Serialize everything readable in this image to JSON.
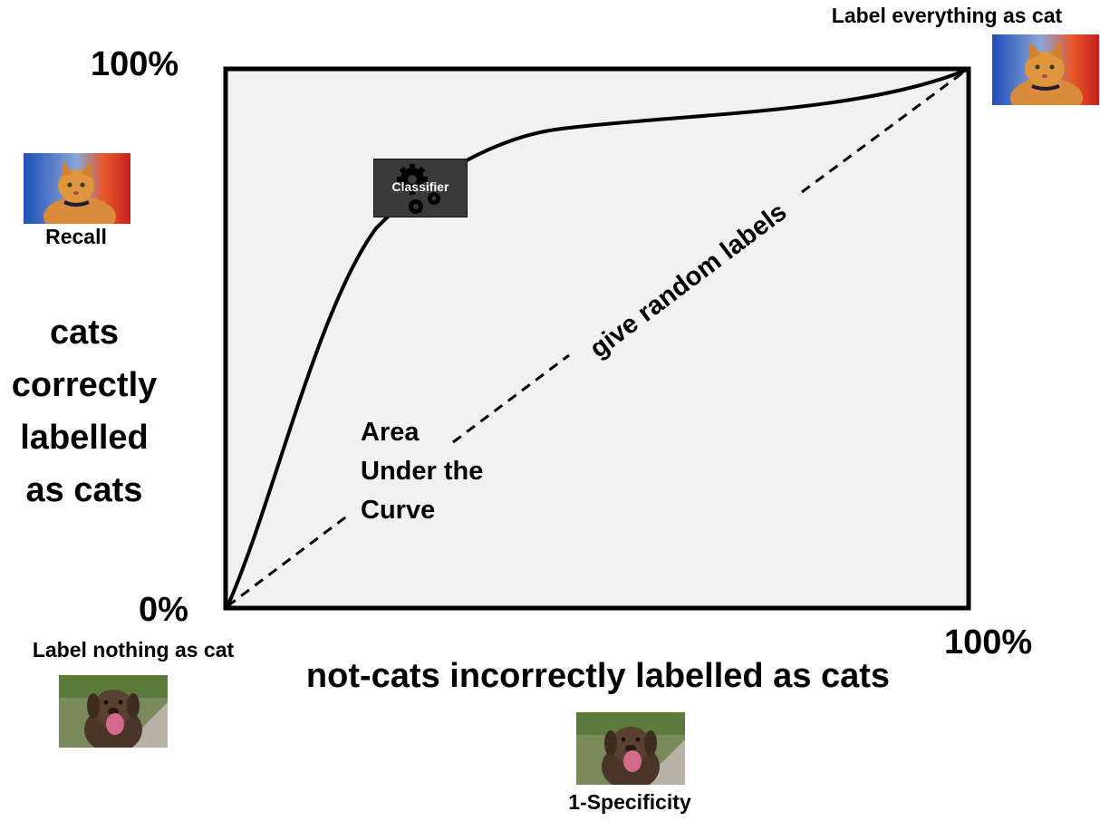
{
  "axes": {
    "y_top": "100%",
    "origin": "0%",
    "x_right": "100%",
    "y_label": "cats correctly labelled as cats",
    "x_label": "not-cats incorrectly labelled as cats"
  },
  "annotations": {
    "recall": "Recall",
    "specificity": "1-Specificity",
    "label_all_cat": "Label everything as cat",
    "label_none_cat": "Label nothing as cat",
    "auc_line1": "Area",
    "auc_line2": "Under the",
    "auc_line3": "Curve",
    "random": "give random labels",
    "classifier": "Classifier"
  },
  "icons": {
    "cat": "cat-photo-icon",
    "dog": "dog-photo-icon",
    "gear": "gears-icon"
  },
  "colors": {
    "plot_fill": "#f1f1f1",
    "line": "#000000",
    "classifier_box": "#3a3a3a"
  }
}
